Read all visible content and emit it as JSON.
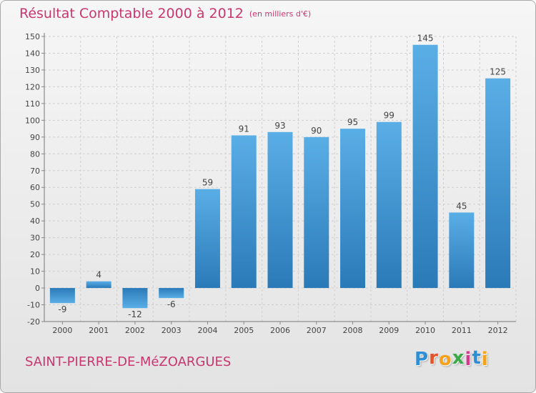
{
  "title": "Résultat Comptable 2000 à 2012",
  "subtitle": "(en milliers d'€)",
  "town": "SAINT-PIERRE-DE-MéZOARGUES",
  "logo": {
    "letters": [
      "P",
      "r",
      "o",
      "x",
      "i",
      "t",
      "i"
    ],
    "colors": [
      "#2e8fd6",
      "#e4522a",
      "#f6a21b",
      "#3aab47",
      "#d63a8a",
      "#2e8fd6",
      "#f6a21b"
    ]
  },
  "colors": {
    "bar_light": "#5aaee6",
    "bar_dark": "#2a7ab8",
    "title": "#c8376e",
    "grid": "#cfcfcf"
  },
  "chart_data": {
    "type": "bar",
    "title": "Résultat Comptable 2000 à 2012",
    "subtitle": "(en milliers d'€)",
    "categories": [
      "2000",
      "2001",
      "2002",
      "2003",
      "2004",
      "2005",
      "2006",
      "2007",
      "2008",
      "2009",
      "2010",
      "2011",
      "2012"
    ],
    "values": [
      -9,
      4,
      -12,
      -6,
      59,
      91,
      93,
      90,
      95,
      99,
      145,
      45,
      125
    ],
    "ylim": [
      -20,
      150
    ],
    "yticks": [
      -20,
      -10,
      0,
      10,
      20,
      30,
      40,
      50,
      60,
      70,
      80,
      90,
      100,
      110,
      120,
      130,
      140,
      150
    ],
    "grid": true,
    "legend": "none"
  }
}
